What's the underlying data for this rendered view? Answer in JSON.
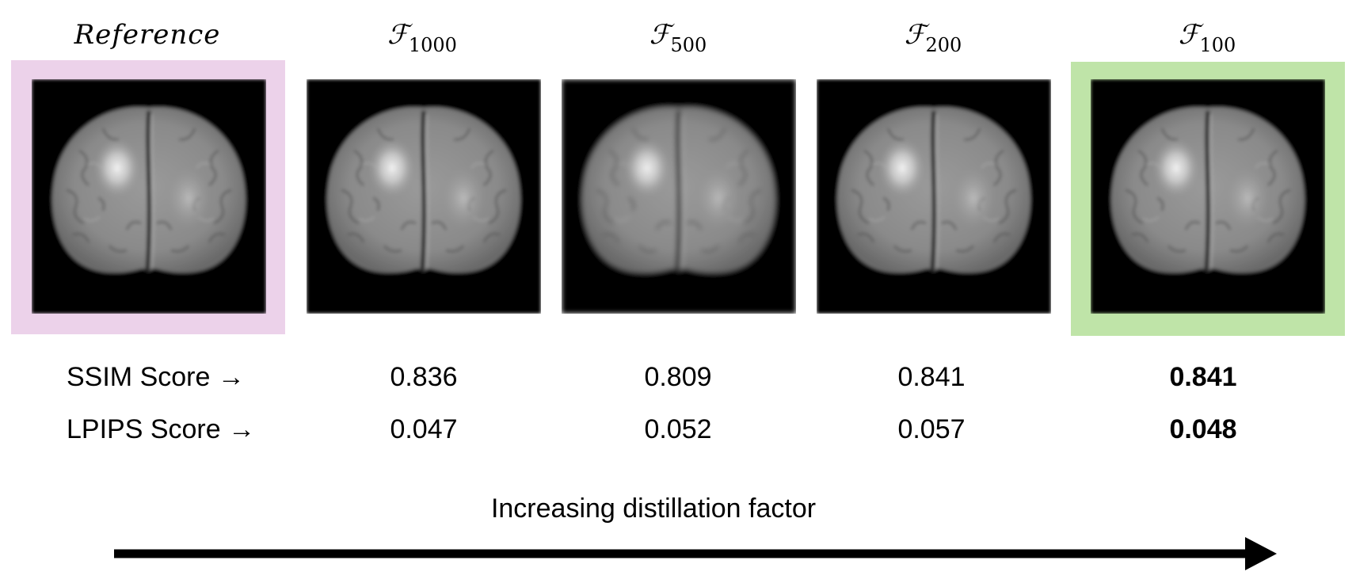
{
  "panels": [
    {
      "title": "Reference",
      "subscript": "",
      "highlight": "#ecd2ea",
      "ssim": "",
      "lpips": "",
      "best": false
    },
    {
      "title": "ℱ",
      "subscript": "1000",
      "highlight": "",
      "ssim": "0.836",
      "lpips": "0.047",
      "best": false
    },
    {
      "title": "ℱ",
      "subscript": "500",
      "highlight": "",
      "ssim": "0.809",
      "lpips": "0.052",
      "best": false
    },
    {
      "title": "ℱ",
      "subscript": "200",
      "highlight": "",
      "ssim": "0.841",
      "lpips": "0.057",
      "best": false
    },
    {
      "title": "ℱ",
      "subscript": "100",
      "highlight": "#bfe4a8",
      "ssim": "0.841",
      "lpips": "0.048",
      "best": true
    }
  ],
  "row_labels": {
    "ssim": "SSIM Score →",
    "lpips": "LPIPS Score →"
  },
  "axis_label": "Increasing distillation factor",
  "colors": {
    "reference_frame": "#ecd2ea",
    "best_frame": "#bfe4a8",
    "image_background": "#000000"
  }
}
